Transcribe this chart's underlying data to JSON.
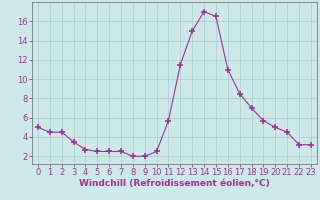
{
  "x": [
    0,
    1,
    2,
    3,
    4,
    5,
    6,
    7,
    8,
    9,
    10,
    11,
    12,
    13,
    14,
    15,
    16,
    17,
    18,
    19,
    20,
    21,
    22,
    23
  ],
  "y": [
    5.0,
    4.5,
    4.5,
    3.5,
    2.7,
    2.5,
    2.5,
    2.5,
    2.0,
    2.0,
    2.5,
    5.7,
    11.5,
    15.0,
    17.0,
    16.5,
    11.0,
    8.5,
    7.0,
    5.7,
    5.0,
    4.5,
    3.2,
    3.2
  ],
  "line_color": "#993399",
  "marker": "+",
  "marker_size": 4,
  "xlabel": "Windchill (Refroidissement éolien,°C)",
  "xlim": [
    -0.5,
    23.5
  ],
  "ylim": [
    1.2,
    18.0
  ],
  "yticks": [
    2,
    4,
    6,
    8,
    10,
    12,
    14,
    16
  ],
  "xticks": [
    0,
    1,
    2,
    3,
    4,
    5,
    6,
    7,
    8,
    9,
    10,
    11,
    12,
    13,
    14,
    15,
    16,
    17,
    18,
    19,
    20,
    21,
    22,
    23
  ],
  "bg_color": "#cce8e8",
  "grid_color": "#aacaca",
  "spine_color": "#777777",
  "tick_label_color": "#993399",
  "xlabel_color": "#993399",
  "xlabel_fontsize": 6.5,
  "tick_fontsize": 6.0,
  "linewidth": 0.8,
  "marker_color": "#993399"
}
